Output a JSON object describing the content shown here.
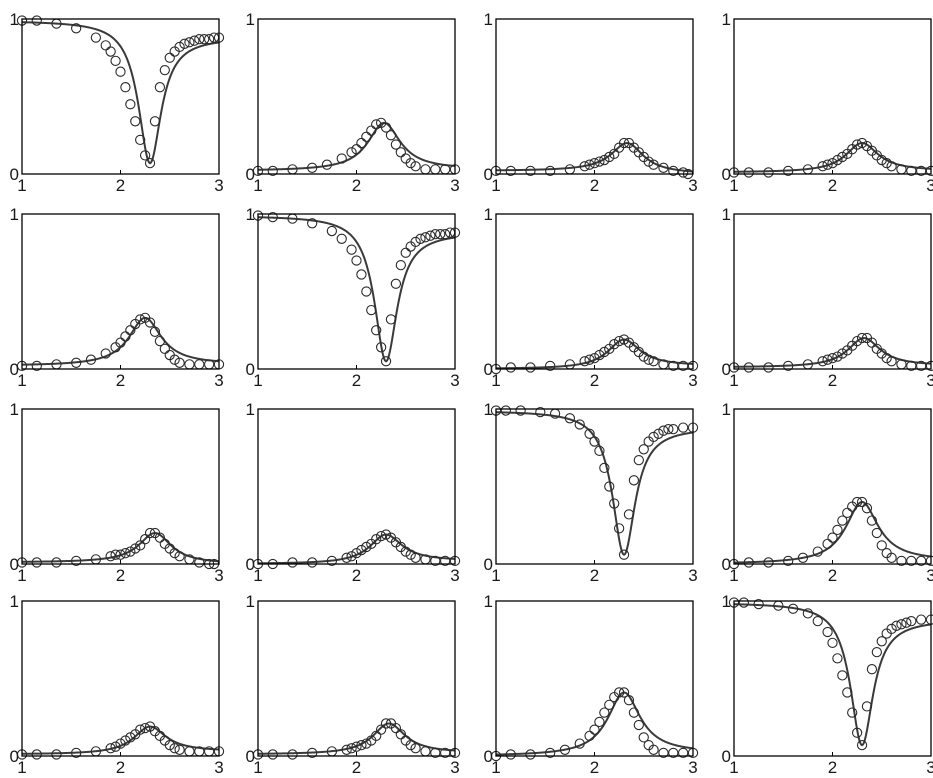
{
  "figure": {
    "layout": "4x4 grid of small multiples",
    "line_color": "#3a3a3a",
    "marker_color": "#2a2a2a",
    "axis_color": "#000000"
  },
  "chart_data": [
    {
      "type": "scatter",
      "title": "",
      "xlabel": "",
      "ylabel": "",
      "xlim": [
        1,
        3
      ],
      "ylim": [
        0,
        1
      ],
      "xticks": [
        "1",
        "2",
        "3"
      ],
      "yticks": [
        "0",
        "1"
      ],
      "grid": false,
      "shape": "dip",
      "peak": 0.07,
      "center": 2.3,
      "baseline_left": 0.99,
      "baseline_right": 0.88,
      "x": [
        1.0,
        1.15,
        1.35,
        1.55,
        1.75,
        1.85,
        1.9,
        1.95,
        2.0,
        2.05,
        2.1,
        2.15,
        2.2,
        2.25,
        2.3,
        2.35,
        2.4,
        2.45,
        2.5,
        2.55,
        2.6,
        2.65,
        2.7,
        2.75,
        2.8,
        2.85,
        2.9,
        2.95,
        3.0
      ],
      "y": [
        0.99,
        0.99,
        0.97,
        0.94,
        0.88,
        0.83,
        0.79,
        0.73,
        0.66,
        0.56,
        0.45,
        0.34,
        0.22,
        0.12,
        0.07,
        0.34,
        0.56,
        0.67,
        0.75,
        0.79,
        0.82,
        0.84,
        0.85,
        0.86,
        0.87,
        0.87,
        0.87,
        0.88,
        0.88
      ]
    },
    {
      "type": "scatter",
      "title": "",
      "xlabel": "",
      "ylabel": "",
      "xlim": [
        1,
        3
      ],
      "ylim": [
        0,
        1
      ],
      "xticks": [
        "1",
        "2",
        "3"
      ],
      "yticks": [
        "0",
        "1"
      ],
      "grid": false,
      "shape": "peak",
      "peak": 0.33,
      "center": 2.28,
      "baseline_left": 0.02,
      "baseline_right": 0.03,
      "x": [
        1.0,
        1.15,
        1.35,
        1.55,
        1.7,
        1.85,
        1.95,
        2.0,
        2.05,
        2.1,
        2.15,
        2.2,
        2.25,
        2.3,
        2.35,
        2.4,
        2.45,
        2.5,
        2.55,
        2.6,
        2.7,
        2.8,
        2.9,
        3.0
      ],
      "y": [
        0.02,
        0.02,
        0.03,
        0.04,
        0.06,
        0.1,
        0.14,
        0.16,
        0.2,
        0.24,
        0.28,
        0.32,
        0.33,
        0.3,
        0.25,
        0.19,
        0.14,
        0.1,
        0.07,
        0.05,
        0.03,
        0.03,
        0.03,
        0.03
      ]
    },
    {
      "type": "scatter",
      "title": "",
      "xlabel": "",
      "ylabel": "",
      "xlim": [
        1,
        3
      ],
      "ylim": [
        0,
        1
      ],
      "xticks": [
        "1",
        "2",
        "3"
      ],
      "yticks": [
        "0",
        "1"
      ],
      "grid": false,
      "shape": "peak",
      "peak": 0.2,
      "center": 2.33,
      "baseline_left": 0.02,
      "baseline_right": 0.0,
      "x": [
        1.0,
        1.15,
        1.35,
        1.55,
        1.75,
        1.9,
        1.95,
        2.0,
        2.05,
        2.1,
        2.15,
        2.2,
        2.25,
        2.3,
        2.35,
        2.4,
        2.45,
        2.5,
        2.55,
        2.6,
        2.7,
        2.8,
        2.9,
        2.95
      ],
      "y": [
        0.02,
        0.02,
        0.02,
        0.02,
        0.03,
        0.05,
        0.06,
        0.07,
        0.08,
        0.09,
        0.11,
        0.13,
        0.17,
        0.2,
        0.2,
        0.17,
        0.14,
        0.11,
        0.08,
        0.06,
        0.04,
        0.02,
        0.01,
        0.0
      ]
    },
    {
      "type": "scatter",
      "title": "",
      "xlabel": "",
      "ylabel": "",
      "xlim": [
        1,
        3
      ],
      "ylim": [
        0,
        1
      ],
      "xticks": [
        "1",
        "2",
        "3"
      ],
      "yticks": [
        "0",
        "1"
      ],
      "grid": false,
      "shape": "peak",
      "peak": 0.2,
      "center": 2.3,
      "baseline_left": 0.01,
      "baseline_right": 0.02,
      "x": [
        1.0,
        1.15,
        1.35,
        1.55,
        1.75,
        1.9,
        1.95,
        2.0,
        2.05,
        2.1,
        2.15,
        2.2,
        2.25,
        2.3,
        2.35,
        2.4,
        2.45,
        2.5,
        2.55,
        2.6,
        2.7,
        2.8,
        2.9,
        3.0
      ],
      "y": [
        0.01,
        0.01,
        0.01,
        0.02,
        0.03,
        0.05,
        0.06,
        0.07,
        0.09,
        0.11,
        0.13,
        0.16,
        0.19,
        0.2,
        0.18,
        0.15,
        0.12,
        0.09,
        0.07,
        0.05,
        0.03,
        0.02,
        0.02,
        0.02
      ]
    },
    {
      "type": "scatter",
      "title": "",
      "xlabel": "",
      "ylabel": "",
      "xlim": [
        1,
        3
      ],
      "ylim": [
        0,
        1
      ],
      "xticks": [
        "1",
        "2",
        "3"
      ],
      "yticks": [
        "0",
        "1"
      ],
      "grid": false,
      "shape": "peak",
      "peak": 0.33,
      "center": 2.25,
      "baseline_left": 0.02,
      "baseline_right": 0.03,
      "x": [
        1.0,
        1.15,
        1.35,
        1.55,
        1.7,
        1.85,
        1.95,
        2.0,
        2.05,
        2.1,
        2.15,
        2.2,
        2.25,
        2.3,
        2.35,
        2.4,
        2.45,
        2.5,
        2.55,
        2.6,
        2.7,
        2.8,
        2.9,
        3.0
      ],
      "y": [
        0.02,
        0.02,
        0.03,
        0.04,
        0.06,
        0.1,
        0.14,
        0.17,
        0.21,
        0.25,
        0.29,
        0.32,
        0.33,
        0.3,
        0.24,
        0.18,
        0.13,
        0.09,
        0.06,
        0.04,
        0.03,
        0.03,
        0.03,
        0.03
      ]
    },
    {
      "type": "scatter",
      "title": "",
      "xlabel": "",
      "ylabel": "",
      "xlim": [
        1,
        3
      ],
      "ylim": [
        0,
        1
      ],
      "xticks": [
        "1",
        "2",
        "3"
      ],
      "yticks": [
        "0",
        "1"
      ],
      "grid": false,
      "shape": "dip",
      "peak": 0.05,
      "center": 2.3,
      "baseline_left": 0.99,
      "baseline_right": 0.88,
      "x": [
        1.0,
        1.15,
        1.35,
        1.55,
        1.75,
        1.85,
        1.95,
        2.0,
        2.05,
        2.1,
        2.15,
        2.2,
        2.25,
        2.3,
        2.35,
        2.4,
        2.45,
        2.5,
        2.55,
        2.6,
        2.65,
        2.7,
        2.75,
        2.8,
        2.85,
        2.9,
        2.95,
        3.0
      ],
      "y": [
        0.99,
        0.98,
        0.97,
        0.94,
        0.89,
        0.84,
        0.77,
        0.7,
        0.61,
        0.5,
        0.38,
        0.25,
        0.14,
        0.05,
        0.32,
        0.55,
        0.67,
        0.75,
        0.79,
        0.82,
        0.84,
        0.85,
        0.86,
        0.87,
        0.87,
        0.87,
        0.88,
        0.88
      ]
    },
    {
      "type": "scatter",
      "title": "",
      "xlabel": "",
      "ylabel": "",
      "xlim": [
        1,
        3
      ],
      "ylim": [
        0,
        1
      ],
      "xticks": [
        "1",
        "2",
        "3"
      ],
      "yticks": [
        "0",
        "1"
      ],
      "grid": false,
      "shape": "peak",
      "peak": 0.19,
      "center": 2.3,
      "baseline_left": 0.0,
      "baseline_right": 0.02,
      "x": [
        1.0,
        1.15,
        1.35,
        1.55,
        1.75,
        1.9,
        1.95,
        2.0,
        2.05,
        2.1,
        2.15,
        2.2,
        2.25,
        2.3,
        2.35,
        2.4,
        2.45,
        2.5,
        2.55,
        2.6,
        2.7,
        2.8,
        2.9,
        3.0
      ],
      "y": [
        0.0,
        0.01,
        0.01,
        0.02,
        0.03,
        0.05,
        0.06,
        0.07,
        0.09,
        0.11,
        0.13,
        0.16,
        0.18,
        0.19,
        0.17,
        0.14,
        0.11,
        0.08,
        0.06,
        0.05,
        0.03,
        0.02,
        0.02,
        0.02
      ]
    },
    {
      "type": "scatter",
      "title": "",
      "xlabel": "",
      "ylabel": "",
      "xlim": [
        1,
        3
      ],
      "ylim": [
        0,
        1
      ],
      "xticks": [
        "1",
        "2",
        "3"
      ],
      "yticks": [
        "0",
        "1"
      ],
      "grid": false,
      "shape": "peak",
      "peak": 0.2,
      "center": 2.32,
      "baseline_left": 0.01,
      "baseline_right": 0.02,
      "x": [
        1.0,
        1.15,
        1.35,
        1.55,
        1.75,
        1.9,
        1.95,
        2.0,
        2.05,
        2.1,
        2.15,
        2.2,
        2.25,
        2.3,
        2.35,
        2.4,
        2.45,
        2.5,
        2.55,
        2.6,
        2.7,
        2.8,
        2.9,
        3.0
      ],
      "y": [
        0.01,
        0.01,
        0.01,
        0.02,
        0.03,
        0.05,
        0.06,
        0.07,
        0.08,
        0.1,
        0.12,
        0.15,
        0.18,
        0.2,
        0.2,
        0.17,
        0.13,
        0.1,
        0.07,
        0.05,
        0.03,
        0.02,
        0.02,
        0.02
      ]
    },
    {
      "type": "scatter",
      "title": "",
      "xlabel": "",
      "ylabel": "",
      "xlim": [
        1,
        3
      ],
      "ylim": [
        0,
        1
      ],
      "xticks": [
        "1",
        "2",
        "3"
      ],
      "yticks": [
        "0",
        "1"
      ],
      "grid": false,
      "shape": "peak",
      "peak": 0.2,
      "center": 2.35,
      "baseline_left": 0.01,
      "baseline_right": 0.0,
      "x": [
        1.0,
        1.15,
        1.35,
        1.55,
        1.75,
        1.9,
        1.95,
        2.0,
        2.05,
        2.1,
        2.15,
        2.2,
        2.25,
        2.3,
        2.35,
        2.4,
        2.45,
        2.5,
        2.55,
        2.6,
        2.7,
        2.8,
        2.9,
        2.95
      ],
      "y": [
        0.01,
        0.01,
        0.01,
        0.02,
        0.03,
        0.05,
        0.06,
        0.06,
        0.07,
        0.08,
        0.1,
        0.12,
        0.16,
        0.2,
        0.2,
        0.17,
        0.13,
        0.1,
        0.07,
        0.05,
        0.03,
        0.01,
        0.0,
        0.0
      ]
    },
    {
      "type": "scatter",
      "title": "",
      "xlabel": "",
      "ylabel": "",
      "xlim": [
        1,
        3
      ],
      "ylim": [
        0,
        1
      ],
      "xticks": [
        "1",
        "2",
        "3"
      ],
      "yticks": [
        "0",
        "1"
      ],
      "grid": false,
      "shape": "peak",
      "peak": 0.19,
      "center": 2.3,
      "baseline_left": 0.0,
      "baseline_right": 0.02,
      "x": [
        1.0,
        1.15,
        1.35,
        1.55,
        1.75,
        1.9,
        1.95,
        2.0,
        2.05,
        2.1,
        2.15,
        2.2,
        2.25,
        2.3,
        2.35,
        2.4,
        2.45,
        2.5,
        2.55,
        2.6,
        2.7,
        2.8,
        2.9,
        3.0
      ],
      "y": [
        0.0,
        0.0,
        0.01,
        0.01,
        0.02,
        0.04,
        0.05,
        0.07,
        0.09,
        0.11,
        0.13,
        0.16,
        0.18,
        0.19,
        0.17,
        0.14,
        0.11,
        0.08,
        0.06,
        0.04,
        0.03,
        0.02,
        0.02,
        0.02
      ]
    },
    {
      "type": "scatter",
      "title": "",
      "xlabel": "",
      "ylabel": "",
      "xlim": [
        1,
        3
      ],
      "ylim": [
        0,
        1
      ],
      "xticks": [
        "1",
        "2",
        "3"
      ],
      "yticks": [
        "0",
        "1"
      ],
      "grid": false,
      "shape": "dip",
      "peak": 0.06,
      "center": 2.3,
      "baseline_left": 0.99,
      "baseline_right": 0.88,
      "x": [
        1.0,
        1.1,
        1.25,
        1.45,
        1.6,
        1.75,
        1.85,
        1.95,
        2.0,
        2.05,
        2.1,
        2.15,
        2.2,
        2.25,
        2.3,
        2.35,
        2.4,
        2.45,
        2.5,
        2.55,
        2.6,
        2.65,
        2.7,
        2.75,
        2.8,
        2.9,
        3.0
      ],
      "y": [
        0.99,
        0.99,
        0.99,
        0.98,
        0.97,
        0.94,
        0.9,
        0.84,
        0.79,
        0.73,
        0.62,
        0.5,
        0.39,
        0.23,
        0.06,
        0.32,
        0.54,
        0.67,
        0.74,
        0.79,
        0.82,
        0.84,
        0.86,
        0.87,
        0.87,
        0.88,
        0.88
      ]
    },
    {
      "type": "scatter",
      "title": "",
      "xlabel": "",
      "ylabel": "",
      "xlim": [
        1,
        3
      ],
      "ylim": [
        0,
        1
      ],
      "xticks": [
        "1",
        "2",
        "3"
      ],
      "yticks": [
        "0",
        "1"
      ],
      "grid": false,
      "shape": "peak",
      "peak": 0.4,
      "center": 2.3,
      "baseline_left": 0.0,
      "baseline_right": 0.02,
      "x": [
        1.0,
        1.15,
        1.35,
        1.55,
        1.7,
        1.85,
        1.95,
        2.0,
        2.05,
        2.1,
        2.15,
        2.2,
        2.25,
        2.3,
        2.35,
        2.4,
        2.45,
        2.5,
        2.55,
        2.6,
        2.7,
        2.8,
        2.9,
        3.0
      ],
      "y": [
        0.0,
        0.01,
        0.01,
        0.02,
        0.04,
        0.08,
        0.13,
        0.17,
        0.22,
        0.28,
        0.33,
        0.37,
        0.4,
        0.4,
        0.36,
        0.28,
        0.2,
        0.12,
        0.07,
        0.04,
        0.02,
        0.02,
        0.02,
        0.02
      ]
    },
    {
      "type": "scatter",
      "title": "",
      "xlabel": "",
      "ylabel": "",
      "xlim": [
        1,
        3
      ],
      "ylim": [
        0,
        1
      ],
      "xticks": [
        "1",
        "2",
        "3"
      ],
      "yticks": [
        "0",
        "1"
      ],
      "grid": false,
      "shape": "peak",
      "peak": 0.19,
      "center": 2.3,
      "baseline_left": 0.01,
      "baseline_right": 0.03,
      "x": [
        1.0,
        1.15,
        1.35,
        1.55,
        1.75,
        1.9,
        1.95,
        2.0,
        2.05,
        2.1,
        2.15,
        2.2,
        2.25,
        2.3,
        2.35,
        2.4,
        2.45,
        2.5,
        2.55,
        2.6,
        2.7,
        2.8,
        2.9,
        3.0
      ],
      "y": [
        0.01,
        0.01,
        0.01,
        0.02,
        0.03,
        0.05,
        0.06,
        0.08,
        0.1,
        0.12,
        0.14,
        0.17,
        0.18,
        0.19,
        0.16,
        0.13,
        0.1,
        0.07,
        0.05,
        0.04,
        0.03,
        0.03,
        0.03,
        0.03
      ]
    },
    {
      "type": "scatter",
      "title": "",
      "xlabel": "",
      "ylabel": "",
      "xlim": [
        1,
        3
      ],
      "ylim": [
        0,
        1
      ],
      "xticks": [
        "1",
        "2",
        "3"
      ],
      "yticks": [
        "0",
        "1"
      ],
      "grid": false,
      "shape": "peak",
      "peak": 0.21,
      "center": 2.33,
      "baseline_left": 0.01,
      "baseline_right": 0.02,
      "x": [
        1.0,
        1.15,
        1.35,
        1.55,
        1.75,
        1.9,
        1.95,
        2.0,
        2.05,
        2.1,
        2.15,
        2.2,
        2.25,
        2.3,
        2.35,
        2.4,
        2.45,
        2.5,
        2.55,
        2.6,
        2.7,
        2.8,
        2.9,
        3.0
      ],
      "y": [
        0.01,
        0.01,
        0.01,
        0.02,
        0.03,
        0.04,
        0.05,
        0.06,
        0.07,
        0.08,
        0.1,
        0.13,
        0.17,
        0.21,
        0.21,
        0.18,
        0.14,
        0.1,
        0.07,
        0.05,
        0.03,
        0.02,
        0.02,
        0.02
      ]
    },
    {
      "type": "scatter",
      "title": "",
      "xlabel": "",
      "ylabel": "",
      "xlim": [
        1,
        3
      ],
      "ylim": [
        0,
        1
      ],
      "xticks": [
        "1",
        "2",
        "3"
      ],
      "yticks": [
        "0",
        "1"
      ],
      "grid": false,
      "shape": "peak",
      "peak": 0.41,
      "center": 2.3,
      "baseline_left": 0.0,
      "baseline_right": 0.02,
      "x": [
        1.0,
        1.15,
        1.35,
        1.55,
        1.7,
        1.85,
        1.95,
        2.0,
        2.05,
        2.1,
        2.15,
        2.2,
        2.25,
        2.3,
        2.35,
        2.4,
        2.45,
        2.5,
        2.55,
        2.6,
        2.7,
        2.8,
        2.9,
        3.0
      ],
      "y": [
        0.0,
        0.01,
        0.01,
        0.02,
        0.04,
        0.08,
        0.13,
        0.17,
        0.22,
        0.28,
        0.33,
        0.38,
        0.41,
        0.41,
        0.36,
        0.28,
        0.2,
        0.12,
        0.07,
        0.04,
        0.02,
        0.02,
        0.02,
        0.02
      ]
    },
    {
      "type": "scatter",
      "title": "",
      "xlabel": "",
      "ylabel": "",
      "xlim": [
        1,
        3
      ],
      "ylim": [
        0,
        1
      ],
      "xticks": [
        "1",
        "2",
        "3"
      ],
      "yticks": [
        "0",
        "1"
      ],
      "grid": false,
      "shape": "dip",
      "peak": 0.07,
      "center": 2.3,
      "baseline_left": 0.99,
      "baseline_right": 0.88,
      "x": [
        1.0,
        1.1,
        1.25,
        1.45,
        1.6,
        1.75,
        1.85,
        1.95,
        2.0,
        2.05,
        2.1,
        2.15,
        2.2,
        2.25,
        2.3,
        2.35,
        2.4,
        2.45,
        2.5,
        2.55,
        2.6,
        2.65,
        2.7,
        2.75,
        2.8,
        2.9,
        3.0
      ],
      "y": [
        0.99,
        0.99,
        0.98,
        0.97,
        0.95,
        0.92,
        0.87,
        0.8,
        0.73,
        0.63,
        0.52,
        0.41,
        0.28,
        0.15,
        0.07,
        0.32,
        0.56,
        0.67,
        0.74,
        0.79,
        0.82,
        0.84,
        0.85,
        0.86,
        0.87,
        0.88,
        0.88
      ]
    }
  ]
}
